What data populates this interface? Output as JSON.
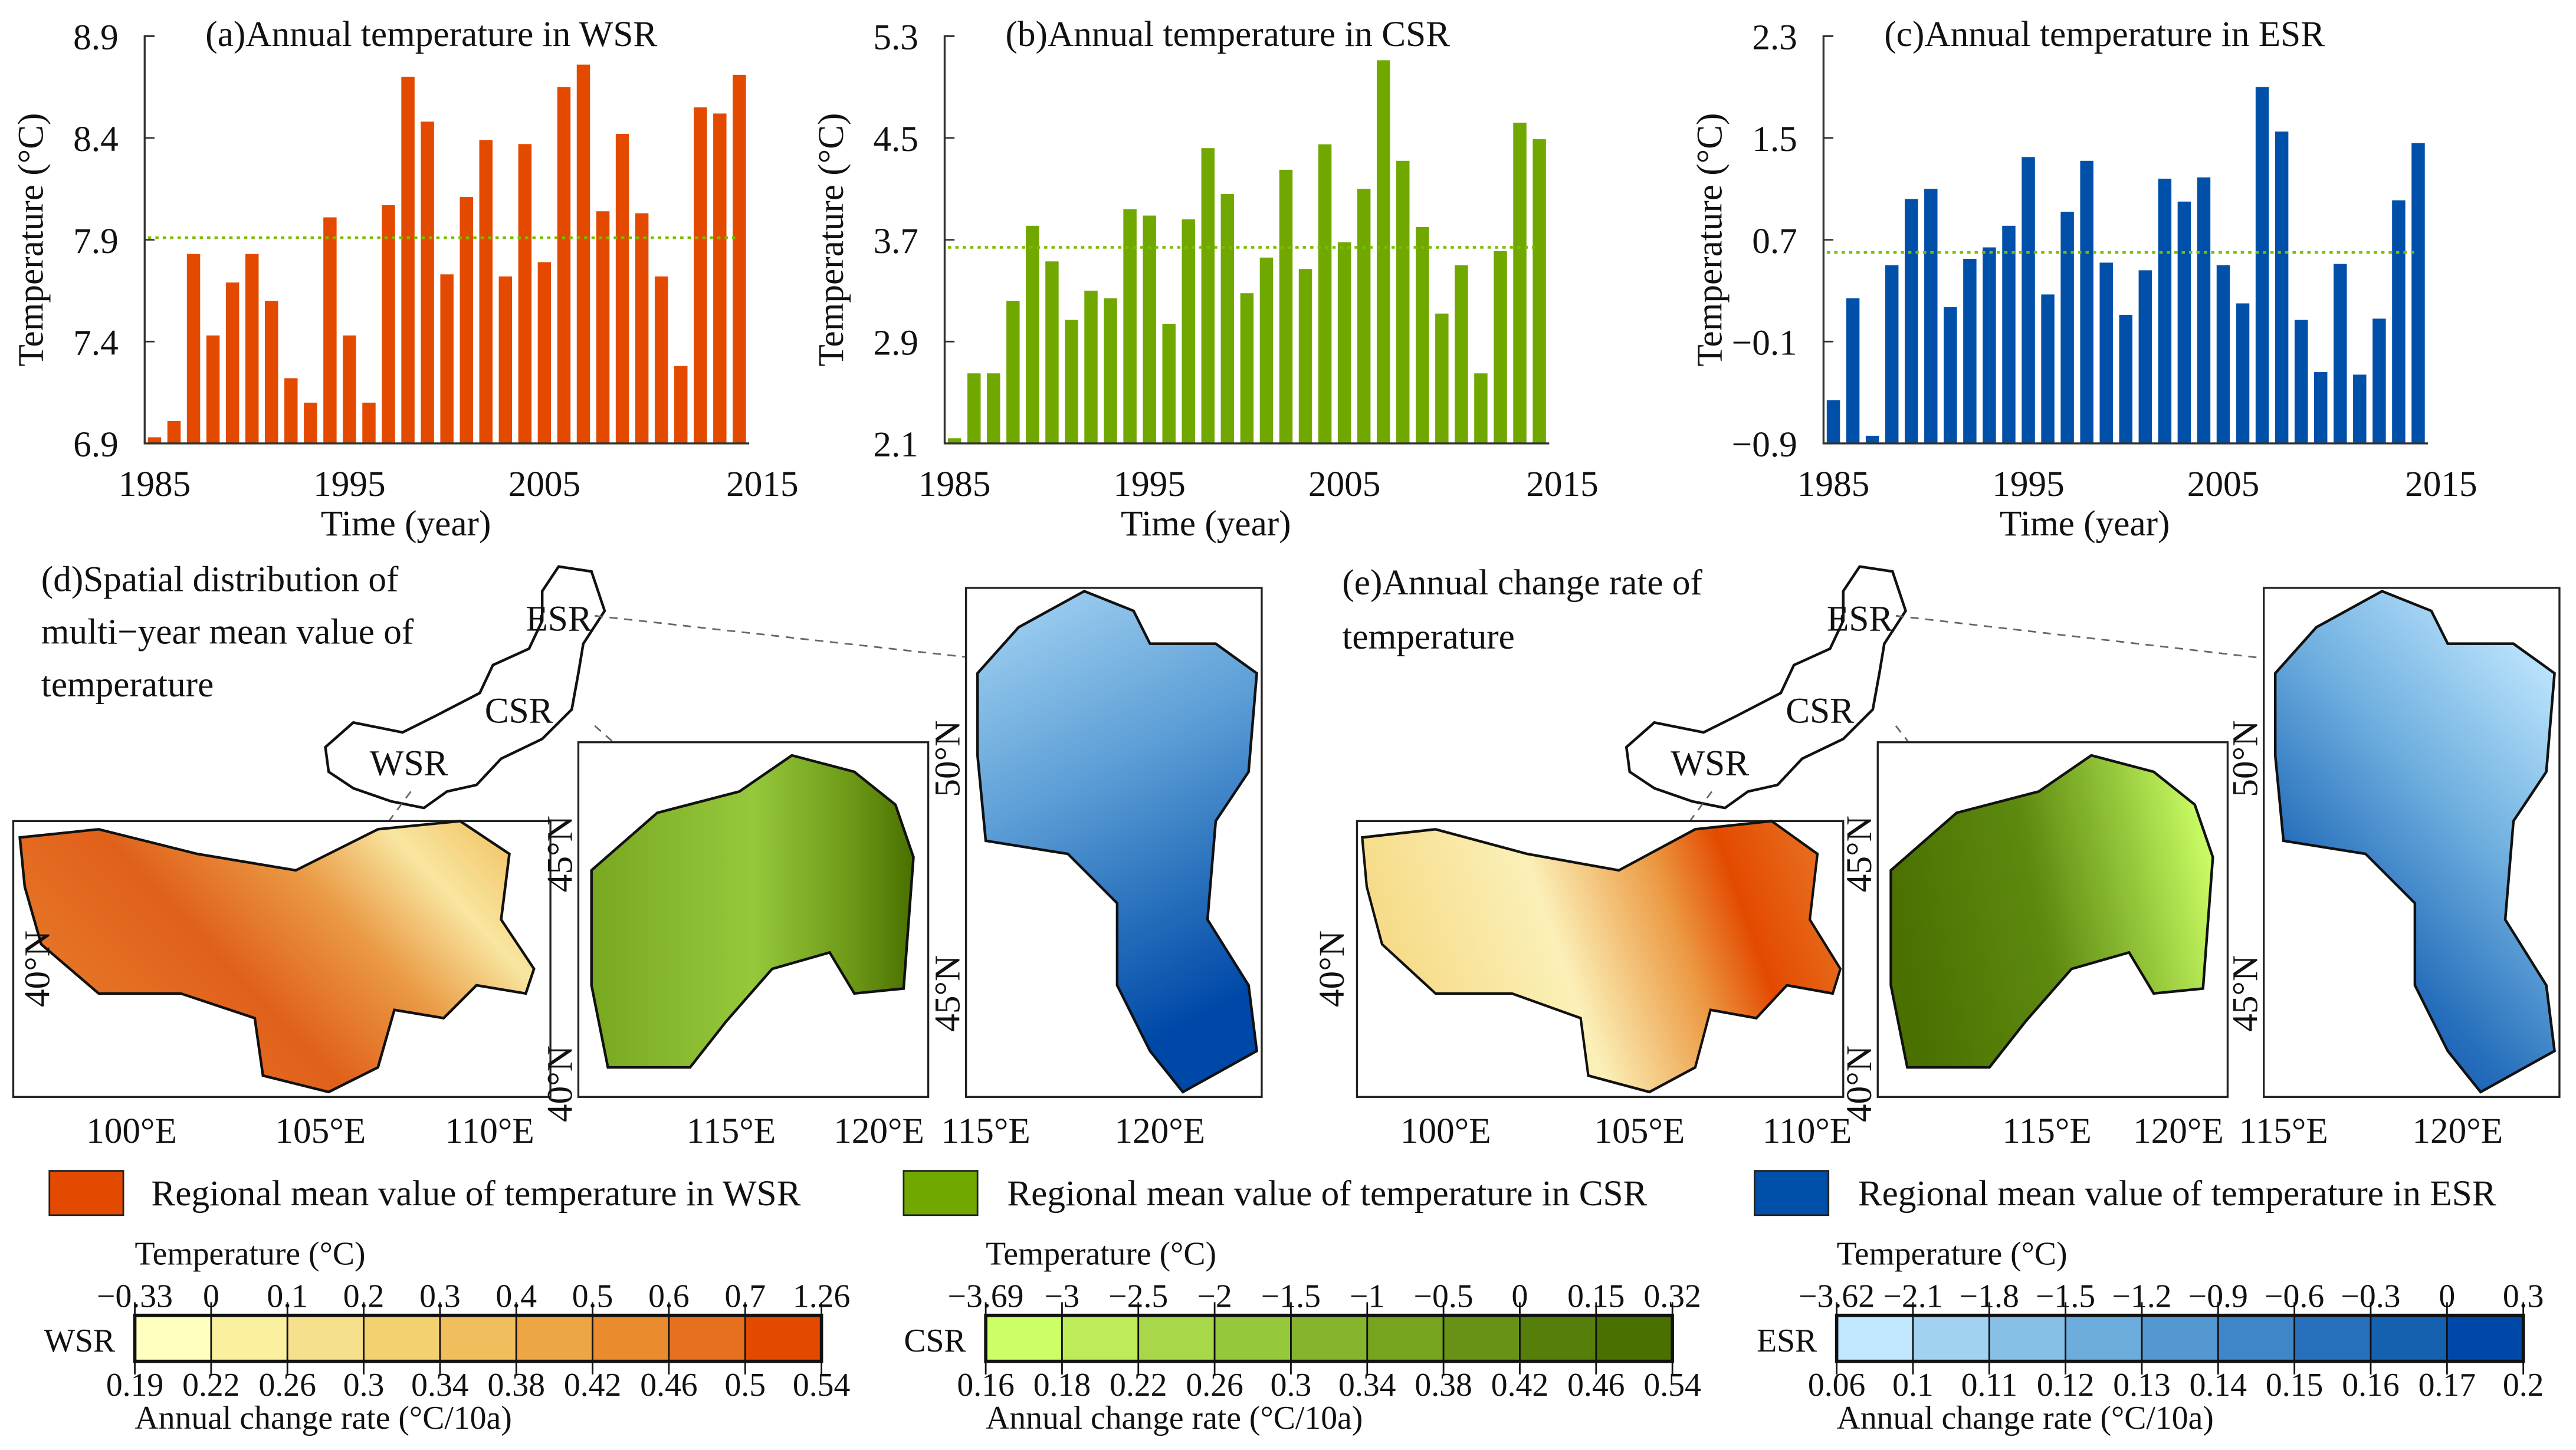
{
  "chart_data": [
    {
      "type": "bar",
      "title": "(a)Annual temperature in WSR",
      "xlabel": "Time (year)",
      "ylabel": "Temperature (°C)",
      "ylim": [
        6.9,
        8.9
      ],
      "yticks": [
        "8.9",
        "8.4",
        "7.9",
        "7.4",
        "6.9"
      ],
      "xtick_labels": [
        "1985",
        "1995",
        "2005",
        "2015"
      ],
      "x": [
        1985,
        1986,
        1987,
        1988,
        1989,
        1990,
        1991,
        1992,
        1993,
        1994,
        1995,
        1996,
        1997,
        1998,
        1999,
        2000,
        2001,
        2002,
        2003,
        2004,
        2005,
        2006,
        2007,
        2008,
        2009,
        2010,
        2011,
        2012,
        2013,
        2014,
        2015
      ],
      "values": [
        6.93,
        7.01,
        7.83,
        7.43,
        7.69,
        7.83,
        7.6,
        7.22,
        7.1,
        8.01,
        7.43,
        7.1,
        8.07,
        8.7,
        8.48,
        7.73,
        8.11,
        8.39,
        7.72,
        8.37,
        7.79,
        8.65,
        8.76,
        8.04,
        8.42,
        8.03,
        7.72,
        7.28,
        8.55,
        8.52,
        8.71
      ],
      "mean": 7.91,
      "bar_color": "#E34A00",
      "mean_color": "#7CBB00"
    },
    {
      "type": "bar",
      "title": "(b)Annual temperature in CSR",
      "xlabel": "Time (year)",
      "ylabel": "Temperature (°C)",
      "ylim": [
        2.1,
        5.3
      ],
      "yticks": [
        "5.3",
        "4.5",
        "3.7",
        "2.9",
        "2.1"
      ],
      "xtick_labels": [
        "1985",
        "1995",
        "2005",
        "2015"
      ],
      "x": [
        1985,
        1986,
        1987,
        1988,
        1989,
        1990,
        1991,
        1992,
        1993,
        1994,
        1995,
        1996,
        1997,
        1998,
        1999,
        2000,
        2001,
        2002,
        2003,
        2004,
        2005,
        2006,
        2007,
        2008,
        2009,
        2010,
        2011,
        2012,
        2013,
        2014,
        2015
      ],
      "values": [
        2.14,
        2.65,
        2.65,
        3.22,
        3.81,
        3.53,
        3.07,
        3.3,
        3.24,
        3.94,
        3.89,
        3.04,
        3.86,
        4.42,
        4.06,
        3.28,
        3.56,
        4.25,
        3.47,
        4.45,
        3.68,
        4.1,
        5.11,
        4.32,
        3.8,
        3.12,
        3.5,
        2.65,
        3.61,
        4.62,
        4.49
      ],
      "mean": 3.64,
      "bar_color": "#70A800",
      "mean_color": "#7CBB00"
    },
    {
      "type": "bar",
      "title": "(c)Annual temperature in ESR",
      "xlabel": "Time (year)",
      "ylabel": "Temperature (°C)",
      "ylim": [
        -0.9,
        2.3
      ],
      "yticks": [
        "2.3",
        "1.5",
        "0.7",
        "−0.1",
        "−0.9"
      ],
      "xtick_labels": [
        "1985",
        "1995",
        "2005",
        "2015"
      ],
      "x": [
        1985,
        1986,
        1987,
        1988,
        1989,
        1990,
        1991,
        1992,
        1993,
        1994,
        1995,
        1996,
        1997,
        1998,
        1999,
        2000,
        2001,
        2002,
        2003,
        2004,
        2005,
        2006,
        2007,
        2008,
        2009,
        2010,
        2011,
        2012,
        2013,
        2014,
        2015
      ],
      "values": [
        -0.56,
        0.24,
        -0.84,
        0.5,
        1.02,
        1.1,
        0.17,
        0.55,
        0.64,
        0.81,
        1.35,
        0.27,
        0.92,
        1.32,
        0.52,
        0.11,
        0.46,
        1.18,
        1.0,
        1.19,
        0.5,
        0.2,
        1.9,
        1.55,
        0.07,
        -0.34,
        0.51,
        -0.36,
        0.08,
        1.01,
        1.46
      ],
      "mean": 0.6,
      "bar_color": "#0050AA",
      "mean_color": "#7CBB00"
    }
  ],
  "maps": {
    "panel_d": {
      "title_lines": [
        "(d)Spatial distribution of",
        "multi−year mean value of",
        "temperature"
      ]
    },
    "panel_e": {
      "title_lines": [
        "(e)Annual change rate of",
        "temperature"
      ]
    },
    "region_labels": {
      "wsr": "WSR",
      "csr": "CSR",
      "esr": "ESR"
    },
    "wsr_lon": [
      "100°E",
      "105°E",
      "110°E"
    ],
    "wsr_lat": [
      "40°N"
    ],
    "csr_lon": [
      "115°E",
      "120°E"
    ],
    "csr_lat": [
      "45°N",
      "40°N"
    ],
    "esr_lon": [
      "115°E",
      "120°E"
    ],
    "esr_lat": [
      "50°N",
      "45°N"
    ]
  },
  "legend": [
    {
      "label": "Regional mean value of temperature in WSR",
      "color": "#E34A00"
    },
    {
      "label": "Regional mean value of temperature in CSR",
      "color": "#70A800"
    },
    {
      "label": "Regional mean value of temperature in ESR",
      "color": "#0050AA"
    }
  ],
  "colorbars": [
    {
      "region": "WSR",
      "top_title": "Temperature (°C)",
      "bottom_title": "Annual change rate (°C/10a)",
      "top_ticks": [
        "−0.33",
        "0",
        "0.1",
        "0.2",
        "0.3",
        "0.4",
        "0.5",
        "0.6",
        "0.7",
        "1.26"
      ],
      "bottom_ticks": [
        "0.19",
        "0.22",
        "0.26",
        "0.3",
        "0.34",
        "0.38",
        "0.42",
        "0.46",
        "0.5",
        "0.54"
      ],
      "colors": [
        "#FFFFC0",
        "#FAF0A0",
        "#F5E08C",
        "#F3D070",
        "#F0BE5C",
        "#ECA644",
        "#EA8C2E",
        "#E6701E",
        "#E34A00"
      ]
    },
    {
      "region": "CSR",
      "top_title": "Temperature (°C)",
      "bottom_title": "Annual change rate (°C/10a)",
      "top_ticks": [
        "−3.69",
        "−3",
        "−2.5",
        "−2",
        "−1.5",
        "−1",
        "−0.5",
        "0",
        "0.15",
        "0.32"
      ],
      "bottom_ticks": [
        "0.16",
        "0.18",
        "0.22",
        "0.26",
        "0.3",
        "0.34",
        "0.38",
        "0.42",
        "0.46",
        "0.54"
      ],
      "colors": [
        "#CCFF66",
        "#BEEB5A",
        "#A8D84A",
        "#96C83C",
        "#86B42C",
        "#76A41E",
        "#689216",
        "#567E0A",
        "#4A7000"
      ]
    },
    {
      "region": "ESR",
      "top_title": "Temperature (°C)",
      "bottom_title": "Annual change rate (°C/10a)",
      "top_ticks": [
        "−3.62",
        "−2.1",
        "−1.8",
        "−1.5",
        "−1.2",
        "−0.9",
        "−0.6",
        "−0.3",
        "0",
        "0.3"
      ],
      "bottom_ticks": [
        "0.06",
        "0.1",
        "0.11",
        "0.12",
        "0.13",
        "0.14",
        "0.15",
        "0.16",
        "0.17",
        "0.2"
      ],
      "colors": [
        "#C2E8FF",
        "#A2D2F2",
        "#88BFE7",
        "#6CADDE",
        "#5498D2",
        "#3E86C8",
        "#2870BC",
        "#1660B0",
        "#0048A8"
      ]
    }
  ]
}
